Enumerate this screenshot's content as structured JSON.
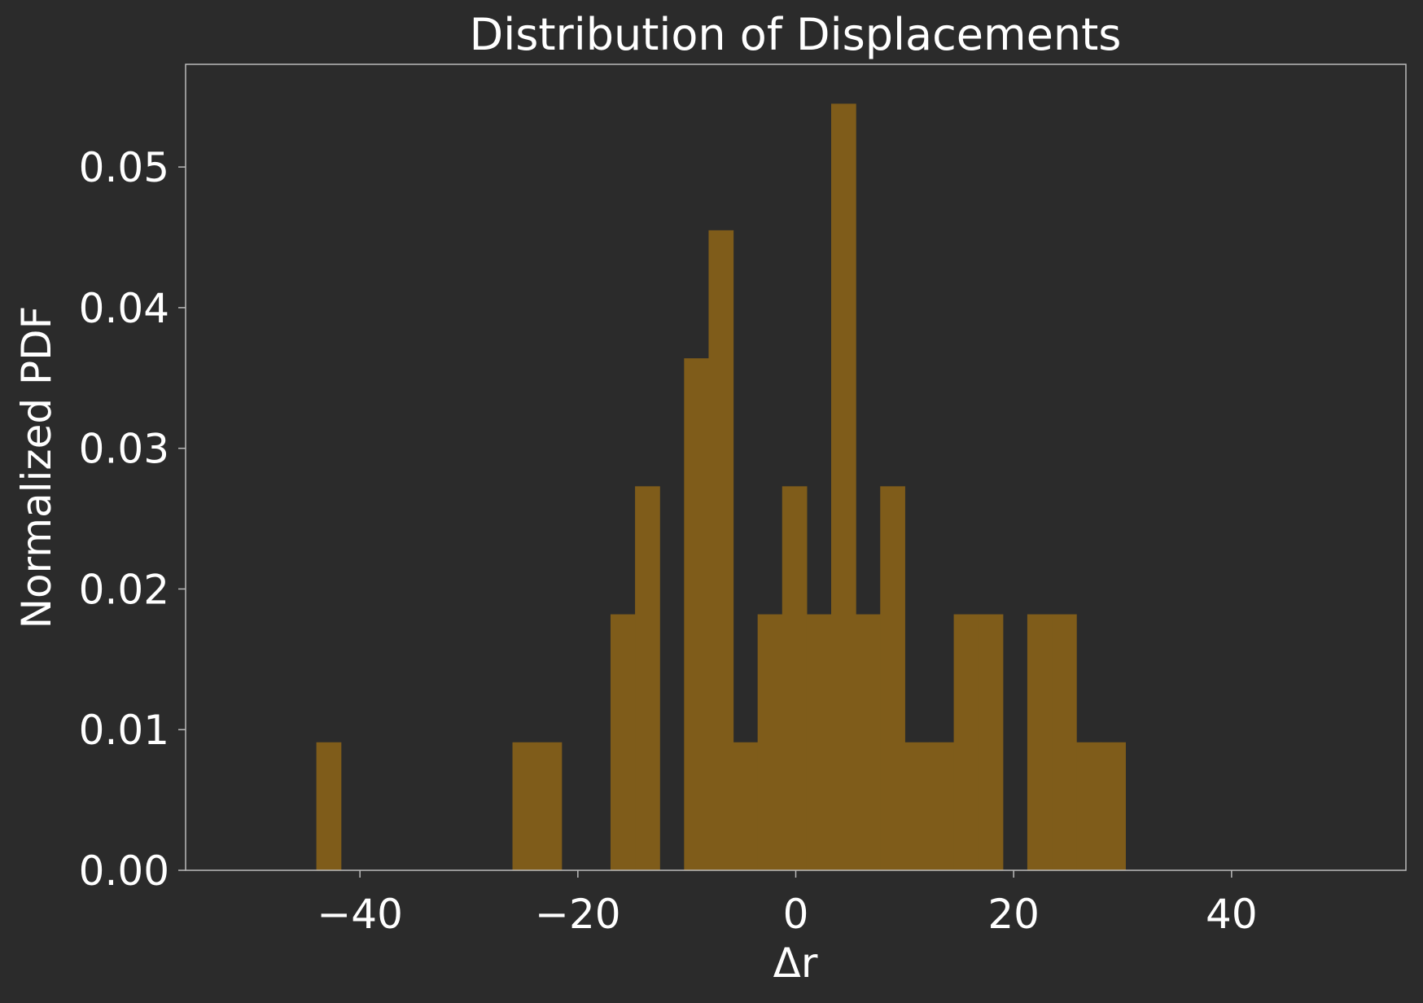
{
  "chart_data": {
    "type": "bar",
    "title": "Distribution of Displacements",
    "xlabel": "Δr",
    "ylabel": "Normalized PDF",
    "xlim": [
      -56,
      56
    ],
    "ylim": [
      0,
      0.0573
    ],
    "xticks": [
      -40,
      -20,
      0,
      20,
      40
    ],
    "xtick_labels": [
      "−40",
      "−20",
      "0",
      "20",
      "40"
    ],
    "yticks": [
      0,
      0.01,
      0.02,
      0.03,
      0.04,
      0.05
    ],
    "ytick_labels": [
      "0.00",
      "0.01",
      "0.02",
      "0.03",
      "0.04",
      "0.05"
    ],
    "grid": false,
    "legend": "none",
    "bar_color": "#7f5c1a",
    "background_color": "#2b2b2b",
    "spine_color": "#bbbbbb",
    "text_color": "#ffffff",
    "bins": [
      {
        "x0": -44.0,
        "x1": -41.75,
        "value": 0.0091
      },
      {
        "x0": -26.0,
        "x1": -23.75,
        "value": 0.0091
      },
      {
        "x0": -23.75,
        "x1": -21.5,
        "value": 0.0091
      },
      {
        "x0": -17.0,
        "x1": -14.75,
        "value": 0.0182
      },
      {
        "x0": -14.75,
        "x1": -12.5,
        "value": 0.0273
      },
      {
        "x0": -10.25,
        "x1": -8.0,
        "value": 0.0364
      },
      {
        "x0": -8.0,
        "x1": -5.75,
        "value": 0.0455
      },
      {
        "x0": -5.75,
        "x1": -3.5,
        "value": 0.0091
      },
      {
        "x0": -3.5,
        "x1": -1.25,
        "value": 0.0182
      },
      {
        "x0": -1.25,
        "x1": 1.0,
        "value": 0.0273
      },
      {
        "x0": 1.0,
        "x1": 3.25,
        "value": 0.0182
      },
      {
        "x0": 3.25,
        "x1": 5.5,
        "value": 0.0545
      },
      {
        "x0": 5.5,
        "x1": 7.75,
        "value": 0.0182
      },
      {
        "x0": 7.75,
        "x1": 10.0,
        "value": 0.0273
      },
      {
        "x0": 10.0,
        "x1": 12.25,
        "value": 0.0091
      },
      {
        "x0": 12.25,
        "x1": 14.5,
        "value": 0.0091
      },
      {
        "x0": 14.5,
        "x1": 16.75,
        "value": 0.0182
      },
      {
        "x0": 16.75,
        "x1": 19.0,
        "value": 0.0182
      },
      {
        "x0": 21.25,
        "x1": 23.5,
        "value": 0.0182
      },
      {
        "x0": 23.5,
        "x1": 25.75,
        "value": 0.0182
      },
      {
        "x0": 25.75,
        "x1": 28.0,
        "value": 0.0091
      },
      {
        "x0": 28.0,
        "x1": 30.25,
        "value": 0.0091
      }
    ]
  }
}
